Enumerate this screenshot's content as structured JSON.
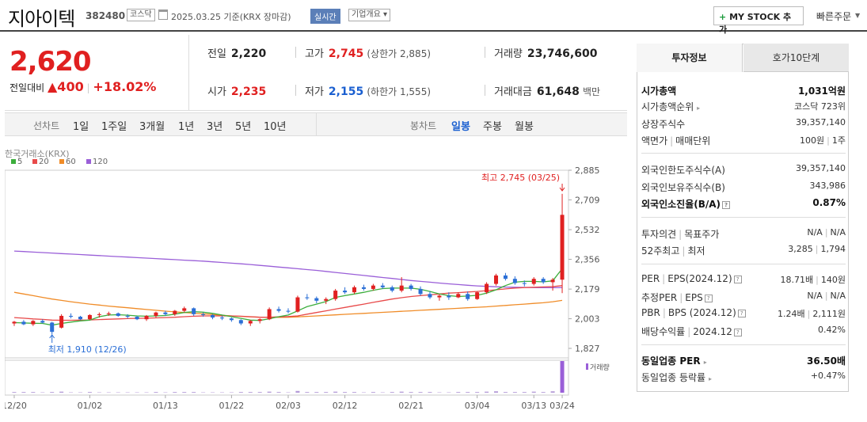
{
  "header": {
    "name": "지아이텍",
    "code": "382480",
    "market": "코스닥",
    "date": "2025.03.25 기준(KRX 장마감)",
    "realtime": "실시간",
    "company_info": "기업개요 ▾",
    "mystock": "MY STOCK 추가",
    "mystock_plus": "+",
    "quick_order": "빠른주문"
  },
  "price": {
    "current": "2,620",
    "change_label": "전일대비",
    "change_amount": "▲400",
    "change_pct": "+18.02%",
    "prev_label": "전일",
    "prev": "2,220",
    "high_label": "고가",
    "high": "2,745",
    "upper_limit": "(상한가 2,885)",
    "volume_label": "거래량",
    "volume": "23,746,600",
    "open_label": "시가",
    "open": "2,235",
    "low_label": "저가",
    "low": "2,155",
    "lower_limit": "(하한가 1,555)",
    "amount_label": "거래대금",
    "amount": "61,648",
    "amount_unit": "백만"
  },
  "periods": {
    "line_label": "선차트",
    "line": [
      "1일",
      "1주일",
      "3개월",
      "1년",
      "3년",
      "5년",
      "10년"
    ],
    "candle_label": "봉차트",
    "candle": [
      "일봉",
      "주봉",
      "월봉"
    ],
    "candle_selected": "일봉"
  },
  "chart_data": {
    "type": "candlestick",
    "source": "한국거래소(KRX)",
    "legend": [
      {
        "name": "5",
        "color": "#3cae3c"
      },
      {
        "name": "20",
        "color": "#e84a4a"
      },
      {
        "name": "60",
        "color": "#f08c28"
      },
      {
        "name": "120",
        "color": "#9a5fd8"
      }
    ],
    "y_ticks": [
      "2,885",
      "2,709",
      "2,532",
      "2,356",
      "2,179",
      "2,003",
      "1,827"
    ],
    "ylim": [
      1827,
      2885
    ],
    "x_ticks": [
      "12/20",
      "01/02",
      "01/13",
      "01/22",
      "02/03",
      "02/12",
      "02/21",
      "03/04",
      "03/13",
      "03/24"
    ],
    "high_label": "최고 2,745 (03/25)",
    "low_label": "최저 1,910 (12/26)",
    "volume_label": "거래량",
    "up_color": "#e02020",
    "down_color": "#2b6fd6",
    "candles": [
      [
        1975,
        1990,
        1960,
        1985
      ],
      [
        1985,
        1995,
        1965,
        1970
      ],
      [
        1970,
        1995,
        1960,
        1990
      ],
      [
        1990,
        2000,
        1975,
        1980
      ],
      [
        1980,
        1985,
        1910,
        1925
      ],
      [
        1950,
        2030,
        1945,
        2020
      ],
      [
        2020,
        2035,
        2005,
        2015
      ],
      [
        2015,
        2020,
        1995,
        2000
      ],
      [
        2000,
        2030,
        1995,
        2025
      ],
      [
        2025,
        2040,
        2010,
        2030
      ],
      [
        2030,
        2045,
        2020,
        2035
      ],
      [
        2035,
        2040,
        2015,
        2020
      ],
      [
        2020,
        2030,
        2005,
        2015
      ],
      [
        2015,
        2020,
        1995,
        2000
      ],
      [
        2000,
        2025,
        1990,
        2020
      ],
      [
        2020,
        2045,
        2010,
        2040
      ],
      [
        2040,
        2050,
        2020,
        2030
      ],
      [
        2030,
        2055,
        2020,
        2050
      ],
      [
        2050,
        2075,
        2040,
        2065
      ],
      [
        2065,
        2070,
        2020,
        2030
      ],
      [
        2030,
        2040,
        2015,
        2025
      ],
      [
        2025,
        2030,
        2000,
        2010
      ],
      [
        2010,
        2020,
        1995,
        2005
      ],
      [
        2005,
        2010,
        1985,
        1995
      ],
      [
        1995,
        2000,
        1965,
        1975
      ],
      [
        1975,
        1995,
        1960,
        1990
      ],
      [
        1990,
        2005,
        1975,
        2000
      ],
      [
        2000,
        2070,
        1995,
        2060
      ],
      [
        2060,
        2075,
        2040,
        2050
      ],
      [
        2050,
        2065,
        2035,
        2045
      ],
      [
        2045,
        2140,
        2040,
        2130
      ],
      [
        2130,
        2150,
        2115,
        2125
      ],
      [
        2125,
        2135,
        2095,
        2110
      ],
      [
        2110,
        2130,
        2090,
        2120
      ],
      [
        2120,
        2180,
        2110,
        2170
      ],
      [
        2170,
        2190,
        2150,
        2160
      ],
      [
        2160,
        2200,
        2150,
        2190
      ],
      [
        2190,
        2205,
        2170,
        2180
      ],
      [
        2180,
        2210,
        2170,
        2200
      ],
      [
        2200,
        2215,
        2180,
        2190
      ],
      [
        2190,
        2200,
        2160,
        2170
      ],
      [
        2170,
        2250,
        2160,
        2200
      ],
      [
        2200,
        2210,
        2170,
        2180
      ],
      [
        2180,
        2195,
        2140,
        2150
      ],
      [
        2150,
        2165,
        2120,
        2130
      ],
      [
        2130,
        2150,
        2110,
        2140
      ],
      [
        2140,
        2160,
        2115,
        2130
      ],
      [
        2130,
        2160,
        2125,
        2150
      ],
      [
        2150,
        2165,
        2110,
        2120
      ],
      [
        2120,
        2165,
        2115,
        2160
      ],
      [
        2160,
        2220,
        2150,
        2210
      ],
      [
        2210,
        2270,
        2200,
        2260
      ],
      [
        2260,
        2275,
        2230,
        2240
      ],
      [
        2240,
        2255,
        2205,
        2215
      ],
      [
        2215,
        2230,
        2195,
        2210
      ],
      [
        2210,
        2250,
        2200,
        2240
      ],
      [
        2240,
        2250,
        2210,
        2220
      ],
      [
        2220,
        2245,
        2170,
        2235
      ],
      [
        2235,
        2745,
        2155,
        2620
      ]
    ],
    "volumes": [
      2,
      2,
      2,
      1,
      2,
      3,
      1,
      1,
      2,
      1,
      1,
      1,
      1,
      1,
      1,
      2,
      1,
      2,
      2,
      2,
      1,
      1,
      1,
      1,
      2,
      2,
      2,
      3,
      2,
      1,
      5,
      2,
      2,
      2,
      3,
      2,
      2,
      1,
      2,
      1,
      2,
      3,
      2,
      2,
      2,
      1,
      1,
      2,
      2,
      2,
      3,
      4,
      2,
      2,
      2,
      3,
      2,
      4,
      90
    ],
    "ma5": [
      1980,
      1978,
      1976,
      1975,
      1965,
      1975,
      1983,
      1990,
      1995,
      2015,
      2025,
      2027,
      2024,
      2020,
      2018,
      2020,
      2022,
      2030,
      2040,
      2045,
      2042,
      2035,
      2025,
      2015,
      2005,
      1995,
      1993,
      2003,
      2015,
      2025,
      2050,
      2075,
      2090,
      2105,
      2130,
      2140,
      2150,
      2160,
      2172,
      2182,
      2185,
      2185,
      2185,
      2178,
      2165,
      2150,
      2140,
      2135,
      2138,
      2142,
      2155,
      2175,
      2200,
      2220,
      2225,
      2225,
      2222,
      2228,
      2300
    ],
    "ma20": [
      2010,
      2006,
      2002,
      1999,
      1995,
      1994,
      1994,
      1995,
      1996,
      1998,
      2000,
      2002,
      2004,
      2005,
      2006,
      2008,
      2010,
      2012,
      2015,
      2018,
      2020,
      2020,
      2020,
      2020,
      2018,
      2015,
      2012,
      2012,
      2014,
      2016,
      2020,
      2030,
      2040,
      2050,
      2060,
      2070,
      2080,
      2090,
      2100,
      2110,
      2120,
      2128,
      2135,
      2140,
      2145,
      2150,
      2155,
      2158,
      2162,
      2165,
      2170,
      2175,
      2180,
      2185,
      2188,
      2190,
      2192,
      2194,
      2200
    ],
    "ma60": [
      2160,
      2150,
      2140,
      2130,
      2120,
      2112,
      2104,
      2097,
      2090,
      2084,
      2078,
      2073,
      2068,
      2063,
      2058,
      2053,
      2048,
      2044,
      2040,
      2036,
      2032,
      2028,
      2024,
      2020,
      2017,
      2014,
      2012,
      2011,
      2011,
      2012,
      2014,
      2017,
      2020,
      2023,
      2026,
      2029,
      2032,
      2035,
      2038,
      2041,
      2044,
      2047,
      2050,
      2053,
      2056,
      2059,
      2062,
      2065,
      2068,
      2071,
      2074,
      2078,
      2082,
      2086,
      2090,
      2094,
      2098,
      2104,
      2112
    ],
    "ma120": [
      2405,
      2402,
      2399,
      2396,
      2393,
      2390,
      2387,
      2384,
      2381,
      2378,
      2375,
      2372,
      2369,
      2366,
      2363,
      2360,
      2357,
      2354,
      2351,
      2348,
      2345,
      2341,
      2337,
      2333,
      2329,
      2325,
      2320,
      2315,
      2310,
      2305,
      2300,
      2295,
      2290,
      2284,
      2278,
      2272,
      2266,
      2260,
      2254,
      2248,
      2242,
      2236,
      2230,
      2225,
      2220,
      2215,
      2210,
      2206,
      2202,
      2198,
      2195,
      2193,
      2191,
      2190,
      2189,
      2188,
      2187,
      2187,
      2188
    ]
  },
  "panel": {
    "tab_invest": "투자정보",
    "tab_orderbook": "호가10단계",
    "market_cap_label": "시가총액",
    "market_cap": "1,031억원",
    "cap_rank_label": "시가총액순위",
    "cap_rank": "코스닥 723위",
    "listed_label": "상장주식수",
    "listed": "39,357,140",
    "face_label": "액면가",
    "trade_unit_label": "매매단위",
    "face": "100원",
    "trade_unit": "1주",
    "foreign_limit_label": "외국인한도주식수(A)",
    "foreign_limit": "39,357,140",
    "foreign_hold_label": "외국인보유주식수(B)",
    "foreign_hold": "343,986",
    "foreign_ratio_label": "외국인소진율(B/A)",
    "foreign_ratio": "0.87%",
    "opinion_label": "투자의견",
    "target_label": "목표주가",
    "opinion": "N/A",
    "target": "N/A",
    "w52_label": "52주최고",
    "w52_low_label": "최저",
    "w52_high": "3,285",
    "w52_low": "1,794",
    "per_label": "PER",
    "eps_label": "EPS(2024.12)",
    "per": "18.71배",
    "eps": "140원",
    "est_per_label": "추정PER",
    "est_eps_label": "EPS",
    "est_per": "N/A",
    "est_eps": "N/A",
    "pbr_label": "PBR",
    "bps_label": "BPS (2024.12)",
    "pbr": "1.24배",
    "bps": "2,111원",
    "div_label": "배당수익률",
    "div_year": "2024.12",
    "div": "0.42%",
    "ind_per_label": "동일업종 PER",
    "ind_per": "36.50배",
    "ind_chg_label": "동일업종 등락률",
    "ind_chg": "+0.47%"
  }
}
